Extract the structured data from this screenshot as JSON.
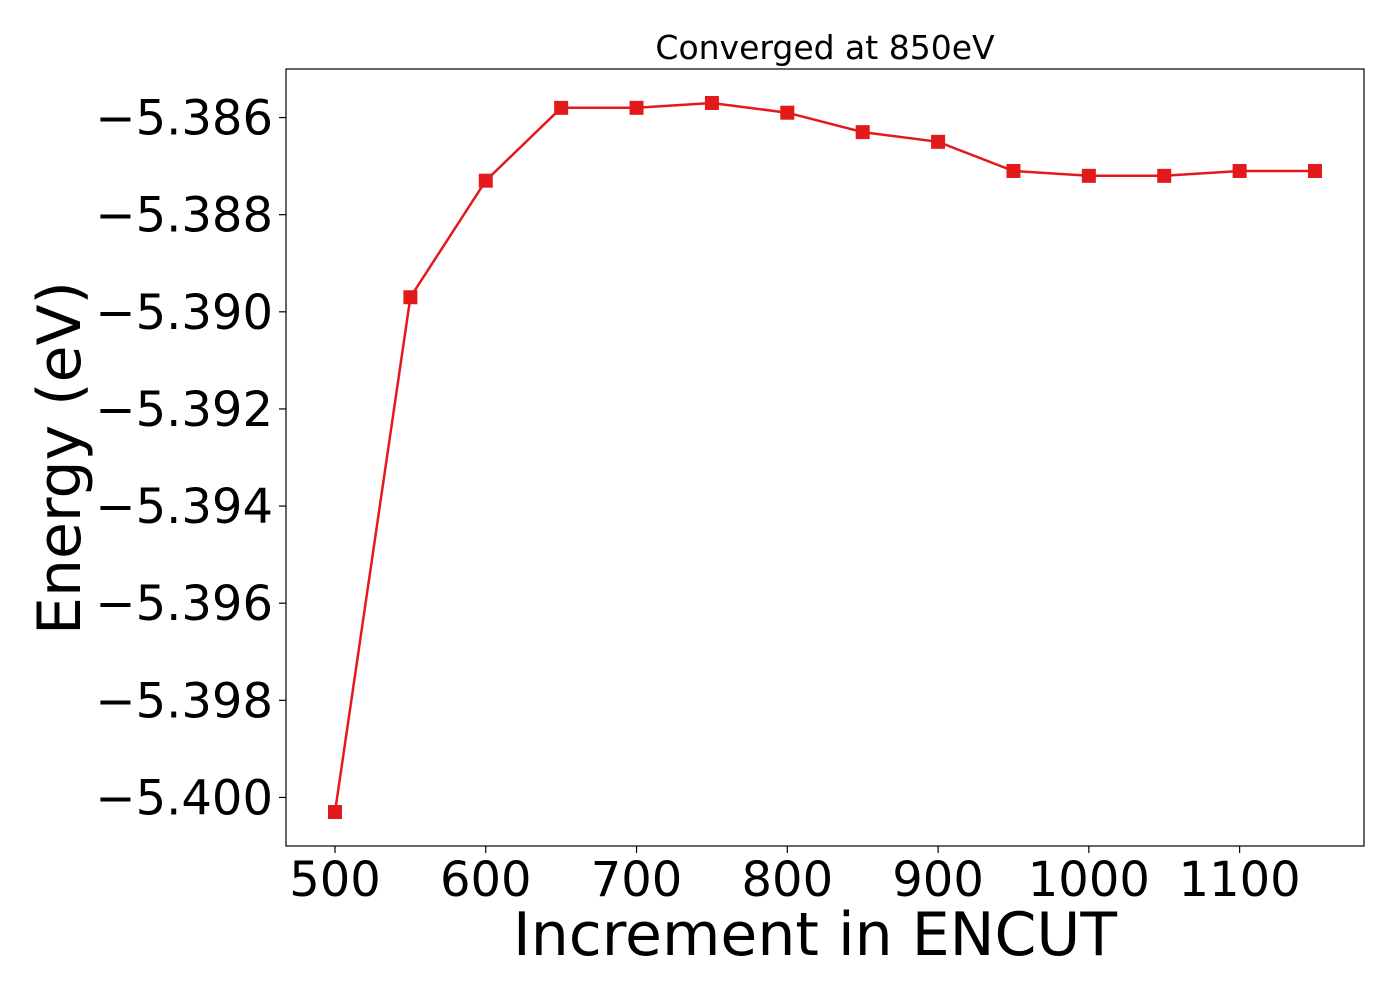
{
  "chart_data": {
    "type": "line",
    "title": "Converged at 850eV",
    "xlabel": "Increment in ENCUT",
    "ylabel": "Energy (eV)",
    "x": [
      500,
      550,
      600,
      650,
      700,
      750,
      800,
      850,
      900,
      950,
      1000,
      1050,
      1100,
      1150
    ],
    "series": [
      {
        "values": [
          -5.4003,
          -5.3897,
          -5.3873,
          -5.3858,
          -5.3858,
          -5.3857,
          -5.3859,
          -5.3863,
          -5.3865,
          -5.3871,
          -5.3872,
          -5.3872,
          -5.3871,
          -5.3871
        ],
        "color": "#e31a1c",
        "marker": "square"
      }
    ],
    "xlim": [
      467.5,
      1182.5
    ],
    "ylim": [
      -5.401,
      -5.385
    ],
    "xticks": [
      500,
      600,
      700,
      800,
      900,
      1000,
      1100
    ],
    "xtick_labels": [
      "500",
      "600",
      "700",
      "800",
      "900",
      "1000",
      "1100"
    ],
    "yticks": [
      -5.386,
      -5.388,
      -5.39,
      -5.392,
      -5.394,
      -5.396,
      -5.398,
      -5.4
    ],
    "ytick_labels": [
      "−5.386",
      "−5.388",
      "−5.390",
      "−5.392",
      "−5.394",
      "−5.396",
      "−5.398",
      "−5.400"
    ],
    "grid": false,
    "legend": "none"
  }
}
